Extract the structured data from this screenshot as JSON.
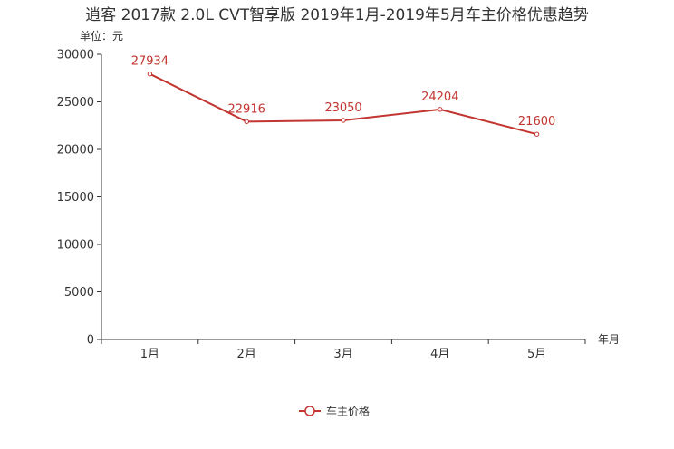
{
  "chart_data": {
    "type": "line",
    "title": "逍客 2017款 2.0L CVT智享版 2019年1月-2019年5月车主价格优惠趋势",
    "ylabel": "单位：元",
    "xlabel": "年月",
    "categories": [
      "1月",
      "2月",
      "3月",
      "4月",
      "5月"
    ],
    "ylim": [
      0,
      30000
    ],
    "yticks": [
      0,
      5000,
      10000,
      15000,
      20000,
      25000,
      30000
    ],
    "series": [
      {
        "name": "车主价格",
        "color": "#c23531",
        "values": [
          27934,
          22916,
          23050,
          24204,
          21600
        ]
      }
    ],
    "legend_position": "bottom-center"
  }
}
